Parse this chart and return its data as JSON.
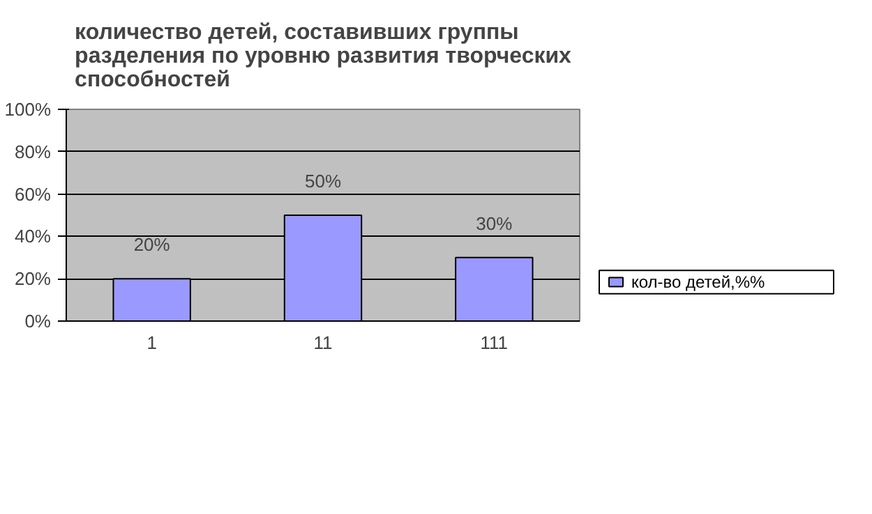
{
  "chart_data": {
    "type": "bar",
    "title": "количество детей, составивших группы разделения по уровню развития творческих способностей",
    "categories": [
      "1",
      "11",
      "111"
    ],
    "series": [
      {
        "name": "кол-во детей,%%",
        "color": "#9999ff",
        "values": [
          20,
          50,
          30
        ],
        "value_labels": [
          "20%",
          "50%",
          "30%"
        ]
      }
    ],
    "ylim": [
      0,
      100
    ],
    "yticks": [
      {
        "value": 0,
        "label": "0%"
      },
      {
        "value": 20,
        "label": "20%"
      },
      {
        "value": 40,
        "label": "40%"
      },
      {
        "value": 60,
        "label": "60%"
      },
      {
        "value": 80,
        "label": "80%"
      },
      {
        "value": 100,
        "label": "100%"
      }
    ],
    "grid": "y",
    "legend": "right"
  }
}
